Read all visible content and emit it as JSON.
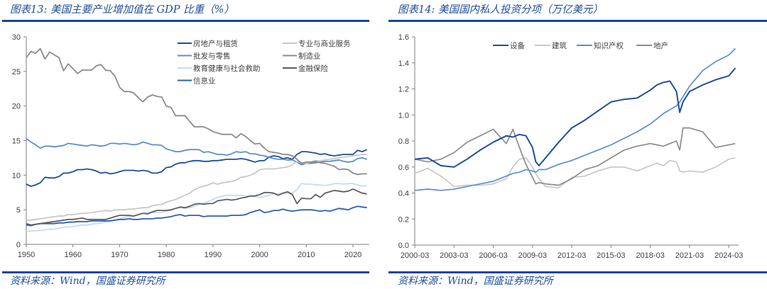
{
  "left": {
    "title": "图表13: 美国主要产业增加值在 GDP 比重（%）",
    "source": "资料来源：Wind，国盛证券研究所"
  },
  "right": {
    "title": "图表14: 美国国内私人投资分项（万亿美元）",
    "source": "资料来源：Wind，国盛证券研究所"
  },
  "chart_data": [
    {
      "type": "line",
      "title": "美国主要产业增加值在 GDP 比重（%）",
      "xlabel": "",
      "ylabel": "",
      "xlim": [
        1950,
        2023
      ],
      "ylim": [
        0,
        30
      ],
      "x_ticks": [
        1950,
        1960,
        1970,
        1980,
        1990,
        2000,
        2010,
        2020
      ],
      "y_ticks": [
        0,
        5,
        10,
        15,
        20,
        25,
        30
      ],
      "grid": false,
      "legend_position": "top-right",
      "x": [
        1950,
        1951,
        1952,
        1953,
        1954,
        1955,
        1956,
        1957,
        1958,
        1959,
        1960,
        1961,
        1962,
        1963,
        1964,
        1965,
        1966,
        1967,
        1968,
        1969,
        1970,
        1971,
        1972,
        1973,
        1974,
        1975,
        1976,
        1977,
        1978,
        1979,
        1980,
        1981,
        1982,
        1983,
        1984,
        1985,
        1986,
        1987,
        1988,
        1989,
        1990,
        1991,
        1992,
        1993,
        1994,
        1995,
        1996,
        1997,
        1998,
        1999,
        2000,
        2001,
        2002,
        2003,
        2004,
        2005,
        2006,
        2007,
        2008,
        2009,
        2010,
        2011,
        2012,
        2013,
        2014,
        2015,
        2016,
        2017,
        2018,
        2019,
        2020,
        2021,
        2022,
        2023
      ],
      "series": [
        {
          "name": "房地产与租赁",
          "color": "#1f4e9a",
          "values": [
            8.7,
            8.4,
            8.6,
            8.9,
            9.7,
            9.6,
            9.6,
            9.8,
            10.3,
            10.3,
            10.5,
            10.8,
            10.8,
            10.9,
            10.8,
            10.6,
            10.3,
            10.4,
            10.2,
            10.3,
            10.5,
            10.7,
            10.7,
            10.7,
            10.6,
            10.7,
            10.6,
            10.3,
            10.3,
            10.5,
            11.1,
            11.2,
            11.6,
            11.8,
            11.8,
            12.0,
            12.1,
            12.1,
            12.0,
            12.0,
            12.1,
            12.1,
            12.2,
            12.3,
            12.3,
            12.3,
            12.4,
            12.3,
            12.1,
            11.9,
            12.1,
            12.1,
            12.6,
            12.8,
            12.7,
            12.4,
            12.5,
            12.3,
            13.0,
            13.4,
            13.4,
            13.3,
            13.2,
            13.0,
            13.1,
            12.9,
            12.8,
            12.9,
            13.0,
            13.0,
            13.0,
            13.6,
            13.4,
            13.7
          ]
        },
        {
          "name": "批发与零售",
          "color": "#5b8fd6",
          "values": [
            15.3,
            14.8,
            14.4,
            13.9,
            14.2,
            14.2,
            14.1,
            14.2,
            14.3,
            14.6,
            14.5,
            14.4,
            14.3,
            14.2,
            14.4,
            14.3,
            14.2,
            14.3,
            14.6,
            14.6,
            14.5,
            14.6,
            14.5,
            14.4,
            14.5,
            14.8,
            14.6,
            14.4,
            14.4,
            14.3,
            13.8,
            13.6,
            13.4,
            13.4,
            13.6,
            13.7,
            13.7,
            13.7,
            13.3,
            13.4,
            13.2,
            13.0,
            13.0,
            12.9,
            13.1,
            13.4,
            13.3,
            13.4,
            13.1,
            13.1,
            12.9,
            12.8,
            12.6,
            12.4,
            12.3,
            12.3,
            12.2,
            12.2,
            11.9,
            11.5,
            11.7,
            11.7,
            11.8,
            11.9,
            12.0,
            12.0,
            12.1,
            12.2,
            12.0,
            11.9,
            12.0,
            12.4,
            12.5,
            12.3
          ]
        },
        {
          "name": "教育健康与社会救助",
          "color": "#c6dbf2",
          "values": [
            1.9,
            1.9,
            2.0,
            2.0,
            2.1,
            2.2,
            2.2,
            2.3,
            2.5,
            2.5,
            2.6,
            2.7,
            2.8,
            2.8,
            2.9,
            3.0,
            3.1,
            3.2,
            3.4,
            3.5,
            3.7,
            3.9,
            4.0,
            4.1,
            4.3,
            4.5,
            4.6,
            4.6,
            4.6,
            4.6,
            4.8,
            4.9,
            5.2,
            5.3,
            5.2,
            5.3,
            5.5,
            5.8,
            6.0,
            6.2,
            6.5,
            6.8,
            7.0,
            7.1,
            7.1,
            7.1,
            7.1,
            7.0,
            6.9,
            6.9,
            6.8,
            6.9,
            7.1,
            7.3,
            7.3,
            7.4,
            7.4,
            7.4,
            7.9,
            8.8,
            8.7,
            8.7,
            8.6,
            8.6,
            8.5,
            8.6,
            8.8,
            8.8,
            8.7,
            8.8,
            8.8,
            8.6,
            8.4,
            8.5
          ]
        },
        {
          "name": "信息业",
          "color": "#2e5fb7",
          "values": [
            3.0,
            2.8,
            2.9,
            3.0,
            3.0,
            3.0,
            3.0,
            3.1,
            3.1,
            3.2,
            3.2,
            3.3,
            3.3,
            3.3,
            3.4,
            3.4,
            3.4,
            3.4,
            3.4,
            3.5,
            3.6,
            3.6,
            3.7,
            3.6,
            3.6,
            3.7,
            3.7,
            3.7,
            3.8,
            3.8,
            3.9,
            4.0,
            4.2,
            4.3,
            4.1,
            4.2,
            4.2,
            4.2,
            4.0,
            4.1,
            4.1,
            4.1,
            4.1,
            4.1,
            4.2,
            4.2,
            4.2,
            4.3,
            4.6,
            4.8,
            5.0,
            4.6,
            4.7,
            4.9,
            4.9,
            5.1,
            4.9,
            4.8,
            4.9,
            5.0,
            5.0,
            5.0,
            4.9,
            4.8,
            4.9,
            4.8,
            5.0,
            5.2,
            5.1,
            5.0,
            5.3,
            5.5,
            5.4,
            5.3
          ]
        },
        {
          "name": "专业与商业服务",
          "color": "#c8c8c8",
          "values": [
            3.5,
            3.5,
            3.6,
            3.7,
            3.8,
            3.9,
            4.0,
            4.1,
            4.1,
            4.3,
            4.3,
            4.4,
            4.5,
            4.5,
            4.6,
            4.7,
            4.8,
            4.9,
            4.8,
            5.0,
            5.0,
            5.0,
            5.1,
            5.1,
            5.2,
            5.3,
            5.3,
            5.6,
            5.7,
            5.8,
            6.1,
            6.3,
            6.5,
            6.8,
            7.1,
            7.4,
            7.9,
            8.2,
            8.4,
            8.6,
            8.9,
            8.7,
            8.9,
            9.0,
            9.1,
            9.3,
            9.7,
            9.8,
            10.0,
            10.3,
            10.8,
            10.9,
            10.9,
            10.9,
            11.0,
            11.1,
            11.2,
            11.5,
            12.0,
            11.8,
            11.7,
            11.9,
            12.1,
            12.1,
            12.2,
            12.3,
            12.4,
            12.5,
            12.6,
            12.7,
            12.8,
            12.9,
            13.0,
            13.0
          ]
        },
        {
          "name": "制造业",
          "color": "#8c8c8c",
          "values": [
            27.0,
            27.9,
            27.6,
            28.3,
            26.8,
            27.8,
            27.4,
            27.0,
            25.1,
            26.1,
            25.4,
            24.7,
            25.2,
            25.2,
            25.2,
            25.8,
            26.0,
            25.2,
            25.1,
            24.3,
            22.7,
            22.1,
            22.1,
            21.9,
            21.2,
            20.6,
            21.3,
            21.6,
            21.4,
            21.3,
            20.0,
            19.8,
            18.6,
            18.6,
            18.6,
            17.8,
            17.0,
            17.0,
            17.0,
            16.7,
            16.3,
            16.1,
            15.9,
            15.9,
            15.9,
            15.4,
            16.0,
            15.6,
            15.0,
            14.5,
            14.6,
            13.9,
            13.4,
            13.3,
            13.2,
            13.0,
            13.0,
            12.8,
            12.3,
            11.7,
            11.9,
            11.9,
            12.0,
            11.8,
            11.7,
            11.5,
            11.3,
            10.8,
            10.9,
            10.8,
            10.3,
            10.1,
            10.2,
            10.2
          ]
        },
        {
          "name": "金融保险",
          "color": "#5f5f5f",
          "values": [
            2.8,
            2.7,
            2.9,
            3.0,
            3.1,
            3.2,
            3.3,
            3.4,
            3.5,
            3.6,
            3.6,
            3.7,
            3.8,
            3.6,
            3.6,
            3.6,
            3.6,
            3.6,
            3.8,
            4.0,
            4.2,
            4.2,
            4.2,
            4.1,
            4.3,
            4.5,
            4.4,
            4.7,
            4.9,
            4.9,
            4.9,
            5.0,
            5.2,
            5.4,
            5.3,
            5.5,
            5.8,
            5.9,
            5.8,
            5.9,
            5.9,
            6.3,
            6.4,
            6.5,
            6.4,
            6.5,
            6.7,
            6.8,
            7.0,
            7.0,
            7.2,
            7.5,
            7.5,
            7.4,
            7.1,
            7.4,
            7.6,
            7.2,
            5.9,
            6.7,
            6.6,
            6.6,
            7.2,
            6.8,
            7.4,
            7.6,
            7.8,
            7.7,
            7.6,
            7.7,
            8.0,
            7.7,
            7.4,
            7.3
          ]
        }
      ]
    },
    {
      "type": "line",
      "title": "美国国内私人投资分项（万亿美元）",
      "xlabel": "",
      "ylabel": "",
      "ylim": [
        0,
        1.6
      ],
      "x_range": [
        "2000-03",
        "2024-09"
      ],
      "x_ticks": [
        "2000-03",
        "2003-03",
        "2006-03",
        "2009-03",
        "2012-03",
        "2015-03",
        "2018-03",
        "2021-03",
        "2024-03"
      ],
      "y_ticks": [
        "0.0",
        "0.2",
        "0.4",
        "0.6",
        "0.8",
        "1.0",
        "1.2",
        "1.4",
        "1.6"
      ],
      "grid": false,
      "legend_position": "top",
      "x_years": [
        2000.0,
        2001.0,
        2002.0,
        2003.0,
        2004.0,
        2005.0,
        2006.0,
        2007.0,
        2007.5,
        2008.0,
        2008.5,
        2009.0,
        2009.25,
        2009.5,
        2010.0,
        2011.0,
        2012.0,
        2013.0,
        2014.0,
        2015.0,
        2016.0,
        2017.0,
        2018.0,
        2018.5,
        2019.0,
        2019.5,
        2020.0,
        2020.25,
        2020.5,
        2021.0,
        2022.0,
        2023.0,
        2024.0,
        2024.5
      ],
      "series": [
        {
          "name": "设备",
          "color": "#1f4e9a",
          "values": [
            0.66,
            0.67,
            0.61,
            0.6,
            0.66,
            0.73,
            0.79,
            0.84,
            0.83,
            0.85,
            0.84,
            0.75,
            0.64,
            0.61,
            0.67,
            0.79,
            0.9,
            0.96,
            1.03,
            1.1,
            1.12,
            1.13,
            1.19,
            1.23,
            1.25,
            1.26,
            1.18,
            1.02,
            1.1,
            1.18,
            1.23,
            1.27,
            1.3,
            1.36
          ]
        },
        {
          "name": "建筑",
          "color": "#c8c8c8",
          "values": [
            0.55,
            0.59,
            0.53,
            0.45,
            0.46,
            0.46,
            0.47,
            0.51,
            0.6,
            0.66,
            0.67,
            0.6,
            0.55,
            0.51,
            0.45,
            0.44,
            0.52,
            0.53,
            0.57,
            0.6,
            0.6,
            0.57,
            0.61,
            0.63,
            0.61,
            0.65,
            0.64,
            0.57,
            0.56,
            0.57,
            0.56,
            0.6,
            0.66,
            0.67
          ]
        },
        {
          "name": "知识产权",
          "color": "#5b8fd6",
          "values": [
            0.42,
            0.43,
            0.42,
            0.43,
            0.45,
            0.47,
            0.49,
            0.53,
            0.55,
            0.56,
            0.58,
            0.57,
            0.56,
            0.58,
            0.58,
            0.62,
            0.65,
            0.69,
            0.73,
            0.77,
            0.82,
            0.87,
            0.93,
            0.97,
            1.01,
            1.04,
            1.07,
            1.1,
            1.14,
            1.22,
            1.34,
            1.41,
            1.46,
            1.51
          ]
        },
        {
          "name": "地产",
          "color": "#8c8c8c",
          "values": [
            0.66,
            0.64,
            0.66,
            0.71,
            0.79,
            0.84,
            0.89,
            0.78,
            0.89,
            0.75,
            0.62,
            0.52,
            0.47,
            0.48,
            0.47,
            0.46,
            0.51,
            0.58,
            0.61,
            0.67,
            0.73,
            0.76,
            0.78,
            0.77,
            0.76,
            0.78,
            0.8,
            0.73,
            0.9,
            0.9,
            0.87,
            0.75,
            0.77,
            0.78
          ]
        }
      ]
    }
  ]
}
